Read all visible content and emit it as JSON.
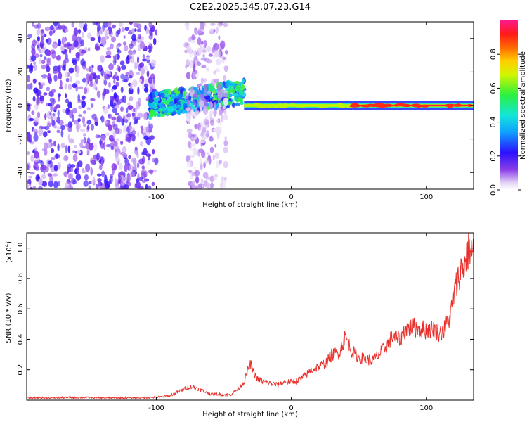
{
  "title": "C2E2.2025.345.07.23.G14",
  "chart_data": [
    {
      "type": "heatmap",
      "xlabel": "Height of straight line (km)",
      "ylabel": "Frequency (Hz)",
      "xlim": [
        -196,
        135
      ],
      "ylim": [
        -50,
        50
      ],
      "x_ticks": [
        -100,
        0,
        100
      ],
      "x_tick_labels": [
        "-100",
        "0",
        "100"
      ],
      "y_ticks": [
        40,
        20,
        0,
        -20,
        -40
      ],
      "y_tick_labels": [
        "40",
        "20",
        "0",
        "-20",
        "-40"
      ],
      "colorbar": {
        "label": "Normalized spectral amplitude",
        "range": [
          0,
          1
        ],
        "ticks": [
          0.0,
          0.2,
          0.4,
          0.6,
          0.8
        ],
        "tick_labels": [
          "0.0",
          "0.2",
          "0.4",
          "0.6",
          "0.8"
        ],
        "colormap": "rainbow (white-purple-blue-cyan-green-yellow-red-magenta)"
      },
      "features": [
        {
          "x_range": [
            -196,
            -100
          ],
          "freq_range": [
            -50,
            50
          ],
          "amplitude": 0.1,
          "pattern": "broadband scattered noise"
        },
        {
          "x_range": [
            -105,
            -35
          ],
          "freq_center_start": 0,
          "freq_center_end": 8,
          "amplitude": 0.35,
          "pattern": "rising band"
        },
        {
          "x_range": [
            -78,
            -48
          ],
          "freq_range": [
            -50,
            50
          ],
          "amplitude": 0.05,
          "pattern": "faint broadband column"
        },
        {
          "x_range": [
            -35,
            45
          ],
          "freq_center": 0,
          "amplitude": 0.7,
          "pattern": "narrow carrier line"
        },
        {
          "x_range": [
            45,
            135
          ],
          "freq_center": 0,
          "amplitude": 0.95,
          "pattern": "strong narrow carrier line"
        }
      ]
    },
    {
      "type": "line",
      "xlabel": "Height of straight line (km)",
      "ylabel": "SNR (10 * v/v)",
      "y_scale_label": "(x10",
      "y_scale_exponent": "4",
      "xlim": [
        -196,
        135
      ],
      "ylim": [
        0,
        1.1
      ],
      "x_ticks": [
        -100,
        0,
        100
      ],
      "x_tick_labels": [
        "-100",
        "0",
        "100"
      ],
      "y_ticks": [
        0.2,
        0.4,
        0.6,
        0.8,
        1.0
      ],
      "y_tick_labels": [
        "0.2",
        "0.4",
        "0.6",
        "0.8",
        "1.0"
      ],
      "color": "#e8312c",
      "series": [
        {
          "x": [
            -196,
            -180,
            -160,
            -140,
            -120,
            -100,
            -90,
            -85,
            -80,
            -75,
            -70,
            -65,
            -60,
            -55,
            -50,
            -45,
            -40,
            -35,
            -32,
            -30,
            -28,
            -25,
            -20,
            -15,
            -10,
            -5,
            0,
            5,
            10,
            15,
            20,
            25,
            30,
            35,
            38,
            40,
            45,
            50,
            55,
            60,
            65,
            70,
            75,
            80,
            85,
            90,
            95,
            100,
            105,
            110,
            113,
            115,
            118,
            120,
            123,
            125,
            128,
            130,
            132,
            135
          ],
          "y": [
            0.015,
            0.015,
            0.018,
            0.015,
            0.015,
            0.018,
            0.03,
            0.05,
            0.07,
            0.09,
            0.08,
            0.06,
            0.04,
            0.04,
            0.035,
            0.035,
            0.07,
            0.12,
            0.2,
            0.24,
            0.18,
            0.14,
            0.12,
            0.11,
            0.1,
            0.12,
            0.12,
            0.13,
            0.16,
            0.2,
            0.22,
            0.24,
            0.3,
            0.31,
            0.37,
            0.42,
            0.32,
            0.28,
            0.27,
            0.26,
            0.3,
            0.35,
            0.42,
            0.4,
            0.47,
            0.48,
            0.47,
            0.46,
            0.47,
            0.44,
            0.46,
            0.5,
            0.56,
            0.68,
            0.78,
            0.85,
            0.88,
            0.95,
            1.0,
            0.95
          ]
        }
      ]
    }
  ]
}
